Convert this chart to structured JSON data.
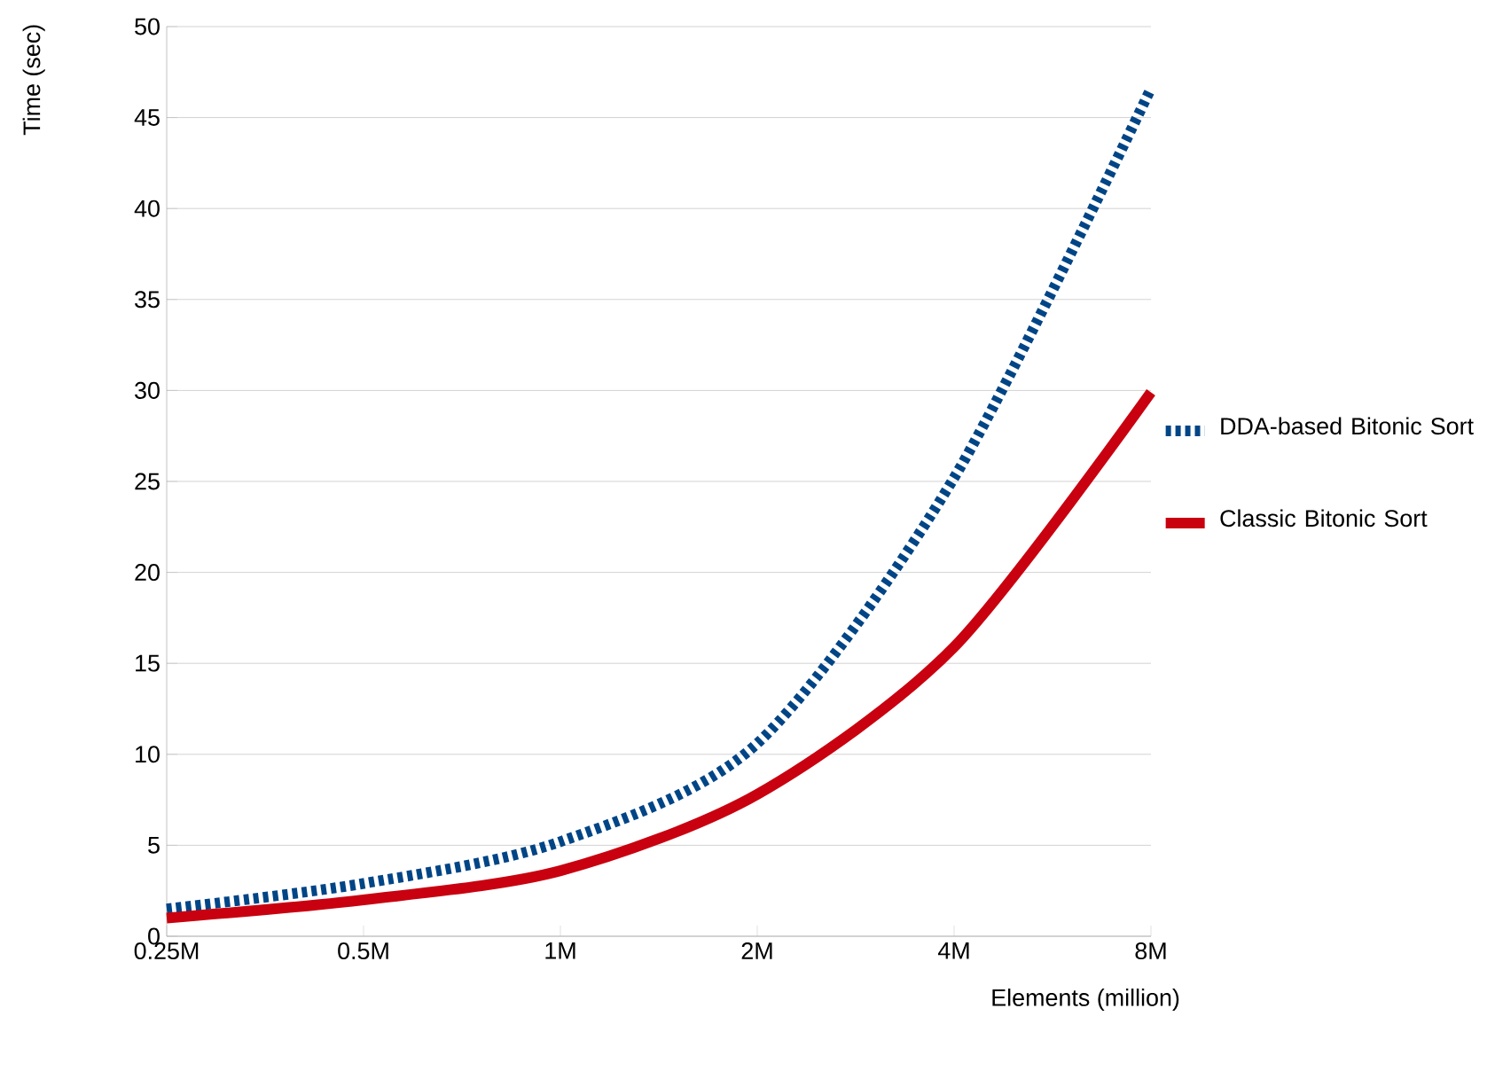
{
  "chart_data": {
    "type": "line",
    "xlabel": "Elements (million)",
    "ylabel": "Time (sec)",
    "categories": [
      "0.25M",
      "0.5M",
      "1M",
      "2M",
      "4M",
      "8M"
    ],
    "series": [
      {
        "name": "DDA-based Bitonic Sort",
        "color": "#004586",
        "line_style": "dotted",
        "values": [
          1.5,
          2.9,
          5.2,
          10.6,
          25.2,
          46.6
        ]
      },
      {
        "name": "Classic Bitonic Sort",
        "color": "#c9000f",
        "line_style": "solid",
        "values": [
          1.0,
          2.0,
          3.6,
          7.8,
          15.9,
          29.9
        ]
      }
    ],
    "ylim": [
      0,
      50
    ],
    "yticks": [
      0,
      5,
      10,
      15,
      20,
      25,
      30,
      35,
      40,
      45,
      50
    ],
    "grid": "y",
    "legend": "right",
    "marker": "none"
  }
}
